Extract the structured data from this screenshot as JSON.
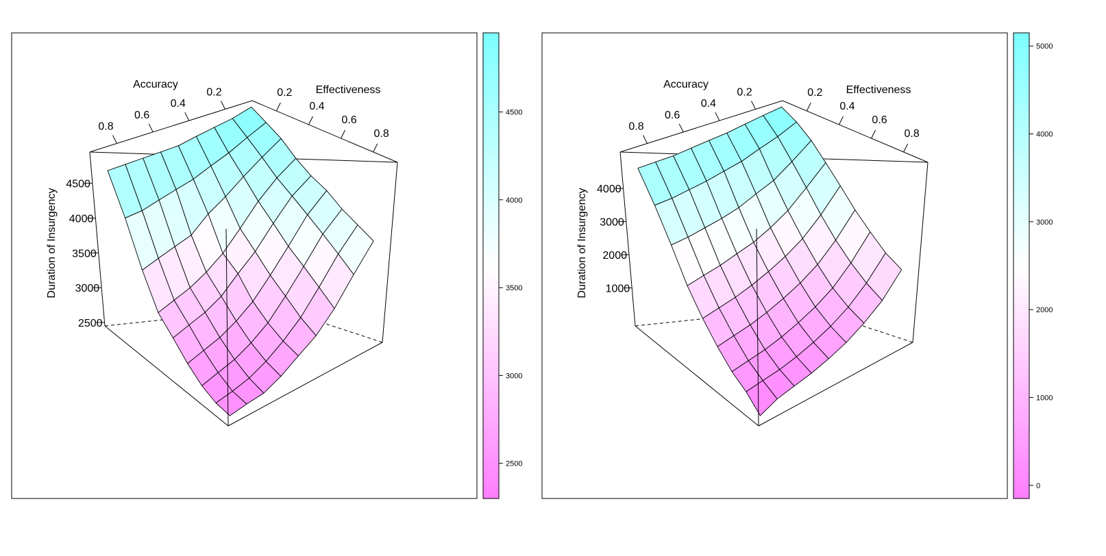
{
  "colors": {
    "low": "#ff80ff",
    "mid": "#ffffff",
    "high": "#80ffff",
    "background": "#ffffff",
    "lines": "#000000"
  },
  "chart_data": [
    {
      "type": "surface",
      "xlabel": "Accuracy",
      "ylabel": "Effectiveness",
      "zlabel": "Duration of Insurgency",
      "x_ticks": [
        "0.2",
        "0.4",
        "0.6",
        "0.8"
      ],
      "y_ticks": [
        "0.2",
        "0.4",
        "0.6",
        "0.8"
      ],
      "z_ticks": [
        "2500",
        "3000",
        "3500",
        "4000",
        "4500"
      ],
      "zlim": [
        2450,
        4950
      ],
      "colorkey": {
        "ticks": [
          "2500",
          "3000",
          "3500",
          "4000",
          "4500"
        ],
        "range": [
          2300,
          4950
        ]
      },
      "grid_x": [
        0.1,
        0.2,
        0.3,
        0.4,
        0.5,
        0.6,
        0.7,
        0.8,
        0.9
      ],
      "grid_y": [
        0.1,
        0.2,
        0.3,
        0.4,
        0.5,
        0.6,
        0.7,
        0.8,
        0.9
      ],
      "z": [
        [
          4950,
          4800,
          4650,
          4450,
          4300,
          4200,
          4050,
          3950,
          3850
        ],
        [
          4850,
          4650,
          4450,
          4250,
          4100,
          3950,
          3800,
          3650,
          3500
        ],
        [
          4800,
          4500,
          4250,
          4000,
          3800,
          3600,
          3450,
          3300,
          3150
        ],
        [
          4750,
          4400,
          4050,
          3700,
          3500,
          3300,
          3150,
          3000,
          2900
        ],
        [
          4700,
          4300,
          3900,
          3450,
          3300,
          3050,
          2900,
          2800,
          2750
        ],
        [
          4700,
          4250,
          3700,
          3300,
          3100,
          2900,
          2750,
          2650,
          2600
        ],
        [
          4700,
          4200,
          3650,
          3200,
          3000,
          2800,
          2650,
          2550,
          2500
        ],
        [
          4700,
          4150,
          3600,
          3150,
          2950,
          2750,
          2600,
          2500,
          2480
        ],
        [
          4700,
          4150,
          3550,
          3100,
          2900,
          2700,
          2550,
          2470,
          2450
        ]
      ]
    },
    {
      "type": "surface",
      "xlabel": "Accuracy",
      "ylabel": "Effectiveness",
      "zlabel": "Duration of Insurgency",
      "x_ticks": [
        "0.2",
        "0.4",
        "0.6",
        "0.8"
      ],
      "y_ticks": [
        "0.2",
        "0.4",
        "0.6",
        "0.8"
      ],
      "z_ticks": [
        "1000",
        "2000",
        "3000",
        "4000"
      ],
      "zlim": [
        -150,
        5100
      ],
      "colorkey": {
        "ticks": [
          "0",
          "1000",
          "2000",
          "3000",
          "4000",
          "5000"
        ],
        "range": [
          -150,
          5150
        ]
      },
      "grid_x": [
        0.1,
        0.2,
        0.3,
        0.4,
        0.5,
        0.6,
        0.7,
        0.8,
        0.9
      ],
      "grid_y": [
        0.1,
        0.2,
        0.3,
        0.4,
        0.5,
        0.6,
        0.7,
        0.8,
        0.9
      ],
      "z": [
        [
          5100,
          4800,
          4400,
          3900,
          3400,
          2900,
          2500,
          2150,
          1950
        ],
        [
          5000,
          4500,
          3900,
          3300,
          2700,
          2200,
          1800,
          1500,
          1300
        ],
        [
          4900,
          4300,
          3500,
          2800,
          2200,
          1700,
          1300,
          1050,
          900
        ],
        [
          4800,
          4100,
          3300,
          2500,
          1900,
          1400,
          1000,
          750,
          600
        ],
        [
          4750,
          4000,
          3100,
          2300,
          1700,
          1200,
          800,
          550,
          400
        ],
        [
          4700,
          3900,
          3000,
          2200,
          1550,
          1050,
          650,
          400,
          250
        ],
        [
          4650,
          3850,
          2950,
          2100,
          1450,
          950,
          550,
          300,
          150
        ],
        [
          4650,
          3800,
          2900,
          2050,
          1400,
          900,
          500,
          250,
          50
        ],
        [
          4650,
          3800,
          2900,
          2000,
          1350,
          850,
          450,
          200,
          -150
        ]
      ]
    }
  ]
}
